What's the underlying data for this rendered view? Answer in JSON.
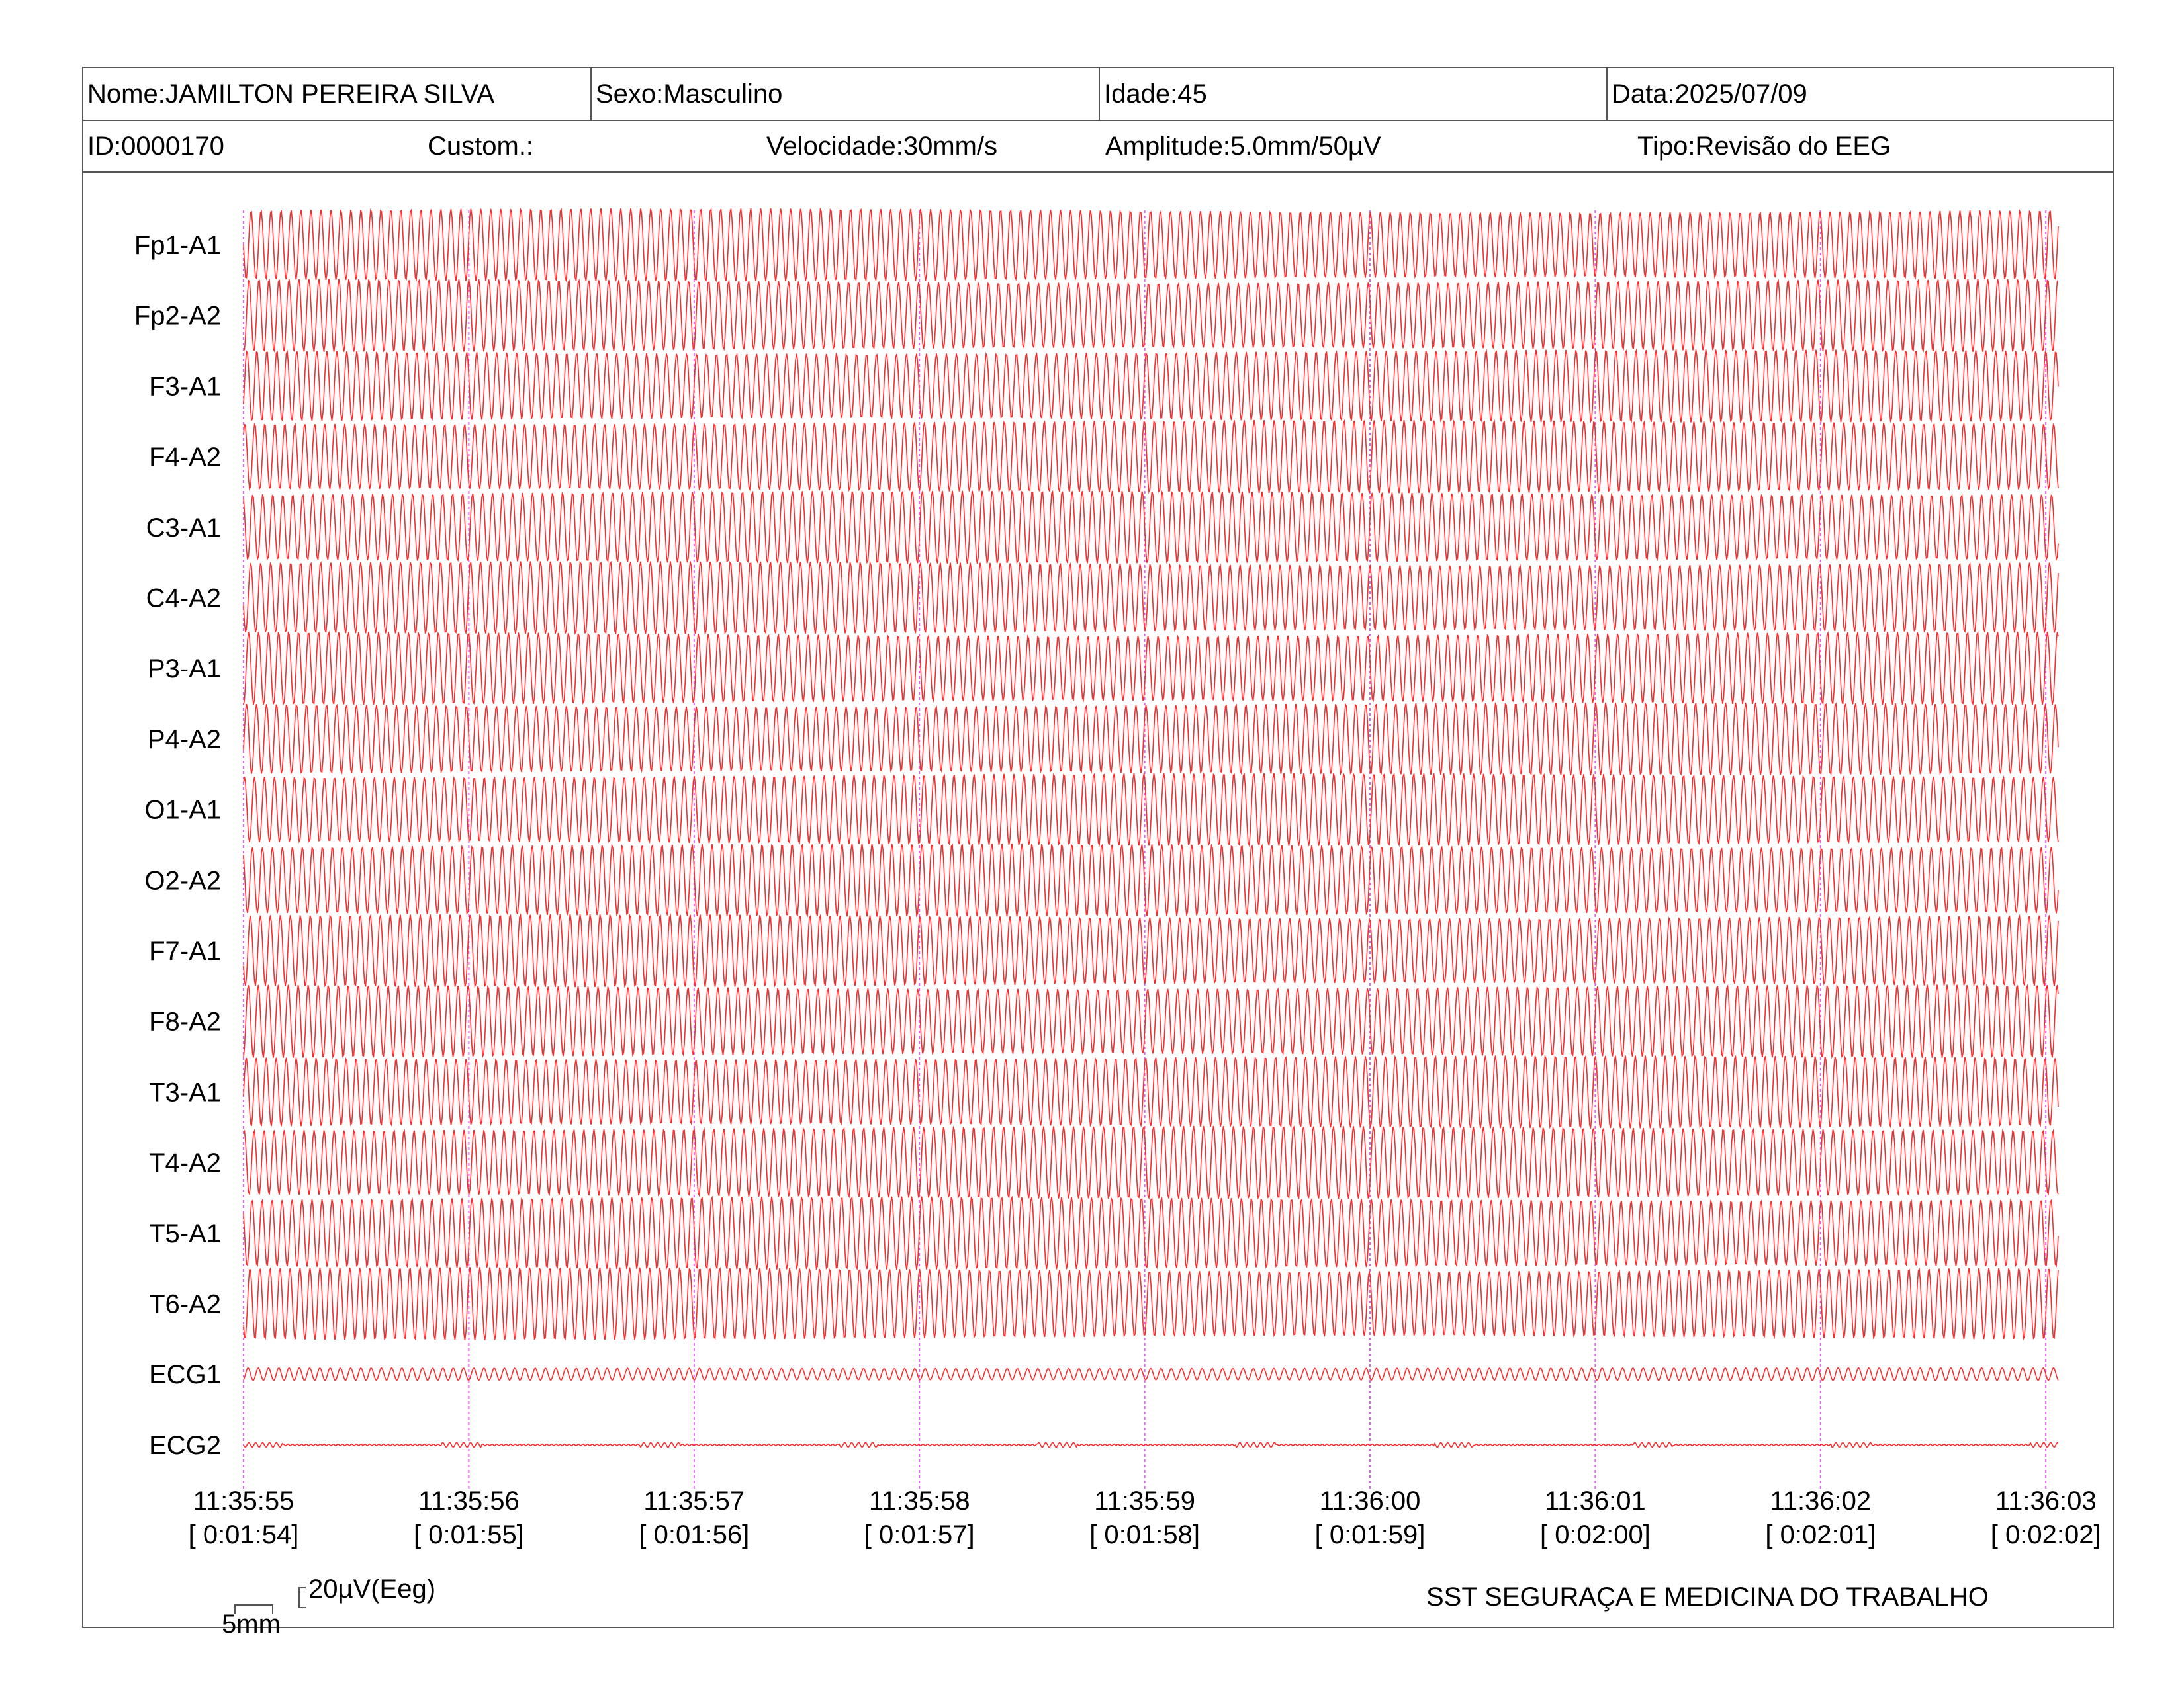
{
  "header": {
    "name": "Nome:JAMILTON PEREIRA SILVA",
    "sex": "Sexo:Masculino",
    "age": "Idade:45",
    "date": "Data:2025/07/09",
    "id": "ID:0000170",
    "custom": "Custom.:",
    "speed": "Velocidade:30mm/s",
    "amplitude": "Amplitude:5.0mm/50µV",
    "type": "Tipo:Revisão do EEG"
  },
  "scale": {
    "time_label": "5mm",
    "amp_label": "20µV(Eeg)"
  },
  "footer": {
    "company": "SST SEGURAÇA E MEDICINA DO TRABALHO"
  },
  "colors": {
    "trace": "#ff2a2a",
    "gridline": "#e060f0",
    "border": "#555555"
  },
  "chart_data": {
    "type": "line",
    "channels": [
      "Fp1-A1",
      "Fp2-A2",
      "F3-A1",
      "F4-A2",
      "C3-A1",
      "C4-A2",
      "P3-A1",
      "P4-A2",
      "O1-A1",
      "O2-A2",
      "F7-A1",
      "F8-A2",
      "T3-A1",
      "T4-A2",
      "T5-A1",
      "T6-A2",
      "ECG1",
      "ECG2"
    ],
    "time_ticks": [
      {
        "time": "11:35:55",
        "elapsed": "[ 0:01:54]"
      },
      {
        "time": "11:35:56",
        "elapsed": "[ 0:01:55]"
      },
      {
        "time": "11:35:57",
        "elapsed": "[ 0:01:56]"
      },
      {
        "time": "11:35:58",
        "elapsed": "[ 0:01:57]"
      },
      {
        "time": "11:35:59",
        "elapsed": "[ 0:01:58]"
      },
      {
        "time": "11:36:00",
        "elapsed": "[ 0:01:59]"
      },
      {
        "time": "11:36:01",
        "elapsed": "[ 0:02:00]"
      },
      {
        "time": "11:36:02",
        "elapsed": "[ 0:02:01]"
      },
      {
        "time": "11:36:03",
        "elapsed": "[ 0:02:02]"
      }
    ],
    "grid": true
  }
}
